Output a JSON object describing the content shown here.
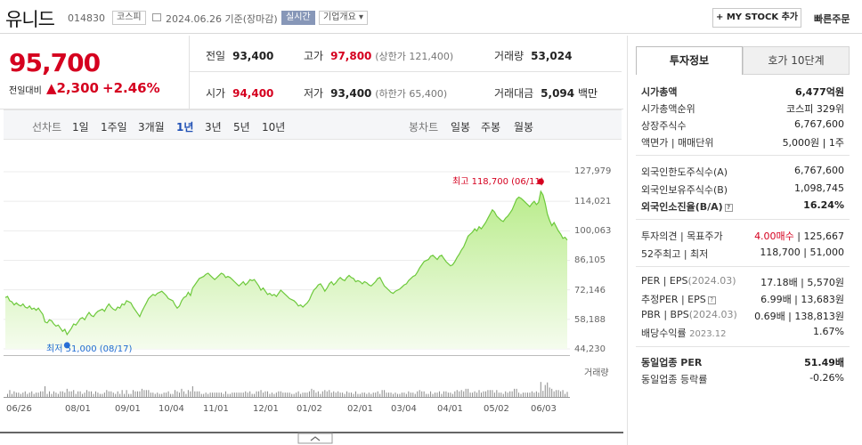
{
  "header": {
    "name": "유니드",
    "code": "014830",
    "market": "코스피",
    "date_text": "2024.06.26  기준(장마감)",
    "realtime": "실시간",
    "company_info": "기업개요 ▾",
    "mystock_btn": "+ MY STOCK 추가",
    "quick_order": "빠른주문"
  },
  "summary": {
    "price": "95,700",
    "change_label": "전일대비",
    "change_value": "▲2,300",
    "change_pct": "+2.46%",
    "prev_label": "전일",
    "prev_value": "93,400",
    "high_label": "고가",
    "high_value": "97,800",
    "upper_limit": "(상한가 121,400)",
    "volume_label": "거래량",
    "volume_value": "53,024",
    "open_label": "시가",
    "open_value": "94,400",
    "low_label": "저가",
    "low_value": "93,400",
    "lower_limit": "(하한가 65,400)",
    "amount_label": "거래대금",
    "amount_value": "5,094",
    "amount_unit": "백만"
  },
  "period_bar": {
    "line_chart_label": "선차트",
    "periods": [
      "1일",
      "1주일",
      "3개월",
      "1년",
      "3년",
      "5년",
      "10년"
    ],
    "active_period": "1년",
    "candle_label": "봉차트",
    "candle_periods": [
      "일봉",
      "주봉",
      "월봉"
    ]
  },
  "chart_data": {
    "type": "area",
    "title": "",
    "y_ticks": [
      "127,979",
      "114,021",
      "100,063",
      "86,105",
      "72,146",
      "58,188",
      "44,230"
    ],
    "ylim": [
      44230,
      127979
    ],
    "x_ticks": [
      "06/26",
      "08/01",
      "09/01",
      "10/04",
      "11/01",
      "12/01",
      "01/02",
      "02/01",
      "03/04",
      "04/01",
      "05/02",
      "06/03"
    ],
    "high_label": "최고 118,700 (06/11)",
    "low_label": "최저 51,000 (08/17)",
    "volume_label": "거래량",
    "series": [
      {
        "name": "",
        "values": [
          68500,
          69000,
          67000,
          66500,
          65000,
          66000,
          65000,
          64500,
          65500,
          64000,
          63500,
          64500,
          63000,
          63500,
          62500,
          63500,
          62000,
          60500,
          57000,
          56500,
          58000,
          57500,
          56000,
          55000,
          55500,
          54000,
          52500,
          53500,
          51000,
          52500,
          54000,
          56000,
          55500,
          57000,
          58500,
          59000,
          58000,
          60000,
          61500,
          60000,
          59500,
          61000,
          62000,
          62500,
          63000,
          62000,
          64000,
          65500,
          64000,
          63000,
          62500,
          64000,
          63500,
          65500,
          65000,
          67000,
          66500,
          66000,
          64000,
          62500,
          61000,
          59500,
          62000,
          64000,
          66000,
          68000,
          69000,
          70000,
          69500,
          70500,
          71000,
          71500,
          70500,
          69500,
          68000,
          67500,
          67000,
          65000,
          63500,
          64500,
          67000,
          68500,
          69000,
          71000,
          69500,
          73000,
          74500,
          76000,
          77500,
          78000,
          78500,
          79500,
          80000,
          79000,
          78000,
          77000,
          78000,
          79000,
          80000,
          79500,
          78000,
          78500,
          78000,
          77000,
          76000,
          75000,
          74000,
          75000,
          76000,
          74500,
          75500,
          77000,
          76500,
          77000,
          75500,
          74000,
          72000,
          73000,
          71500,
          70000,
          70500,
          69500,
          70000,
          69000,
          70500,
          72000,
          71000,
          70000,
          69000,
          68000,
          67500,
          67000,
          66000,
          64500,
          65000,
          64000,
          65000,
          66000,
          67500,
          70000,
          72000,
          73000,
          74500,
          75000,
          73500,
          71500,
          73000,
          75000,
          76000,
          74500,
          75500,
          77000,
          78000,
          77000,
          76500,
          78000,
          79000,
          78000,
          77500,
          76000,
          76500,
          76000,
          75000,
          76000,
          75500,
          74500,
          74000,
          75000,
          76000,
          77500,
          78000,
          76000,
          74000,
          73000,
          72000,
          71000,
          70500,
          71500,
          72000,
          72500,
          73500,
          74500,
          75000,
          76500,
          77500,
          78500,
          79000,
          80500,
          82500,
          84000,
          85500,
          86000,
          86500,
          88000,
          88500,
          87500,
          86500,
          88000,
          88500,
          87000,
          85500,
          84500,
          83500,
          84000,
          85500,
          87500,
          89000,
          91000,
          92500,
          95000,
          97500,
          98500,
          99500,
          101000,
          100000,
          102000,
          101000,
          102500,
          104000,
          106000,
          108000,
          110000,
          109000,
          107000,
          106000,
          105000,
          104500,
          106000,
          107000,
          108500,
          110000,
          112500,
          115000,
          116000,
          115500,
          114500,
          113500,
          112500,
          111500,
          113000,
          114000,
          112500,
          113500,
          118700,
          117000,
          113000,
          108000,
          105000,
          102500,
          104000,
          102000,
          100000,
          98500,
          96500,
          97000,
          95700
        ]
      }
    ]
  },
  "info_panel": {
    "tab_active": "투자정보",
    "tab_other": "호가 10단계",
    "market_cap_label": "시가총액",
    "market_cap_value": "6,477억원",
    "rank_label": "시가총액순위",
    "rank_value": "코스피 329위",
    "shares_label": "상장주식수",
    "shares_value": "6,767,600",
    "par_label": "액면가 | 매매단위",
    "par_value": "5,000원 | 1주",
    "foreign_limit_label": "외국인한도주식수(A)",
    "foreign_limit_value": "6,767,600",
    "foreign_hold_label": "외국인보유주식수(B)",
    "foreign_hold_value": "1,098,745",
    "foreign_ratio_label": "외국인소진율(B/A)",
    "foreign_ratio_value": "16.24%",
    "opinion_label": "투자의견 | 목표주가",
    "opinion_value": "4.00매수",
    "target_value": "| 125,667",
    "week52_label": "52주최고 | 최저",
    "week52_value": "118,700 | 51,000",
    "per_label": "PER | EPS",
    "per_period": "(2024.03)",
    "per_value": "17.18배 | 5,570원",
    "eper_label": "추정PER | EPS",
    "eper_value": "6.99배 | 13,683원",
    "pbr_label": "PBR | BPS",
    "pbr_period": "(2024.03)",
    "pbr_value": "0.69배 | 138,813원",
    "div_label": "배당수익률",
    "div_period": "2023.12",
    "div_value": "1.67%",
    "ind_per_label": "동일업종 PER",
    "ind_per_value": "51.49배",
    "ind_rate_label": "동일업종 등락률",
    "ind_rate_value": "-0.26%"
  }
}
